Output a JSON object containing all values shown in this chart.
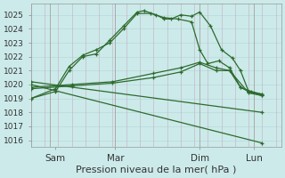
{
  "background_color": "#cceaea",
  "grid_color_h": "#b8d8d8",
  "grid_color_v": "#c8b8c8",
  "line_color": "#2d6b2d",
  "ylim": [
    1015.5,
    1025.8
  ],
  "xlim": [
    0,
    9.2
  ],
  "yticks": [
    1016,
    1017,
    1018,
    1019,
    1020,
    1021,
    1022,
    1023,
    1024,
    1025
  ],
  "xlabel": "Pression niveau de la mer( hPa )",
  "xtick_labels": [
    "Sam",
    "Mar",
    "Dim",
    "Lun"
  ],
  "xtick_positions": [
    0.9,
    3.1,
    6.2,
    8.2
  ],
  "vlines_x": [
    0.7,
    3.1,
    6.2,
    8.2
  ],
  "series": [
    {
      "x": [
        0.0,
        0.9,
        1.4,
        1.9,
        2.4,
        2.9,
        3.4,
        3.9,
        4.15,
        4.6,
        4.9,
        5.15,
        5.5,
        5.9,
        6.2,
        6.6,
        7.0,
        7.4,
        7.7,
        8.0,
        8.5
      ],
      "y": [
        1019.0,
        1019.5,
        1021.0,
        1022.0,
        1022.2,
        1023.2,
        1024.2,
        1025.2,
        1025.3,
        1025.0,
        1024.7,
        1024.7,
        1025.0,
        1024.9,
        1025.2,
        1024.2,
        1022.5,
        1021.9,
        1021.0,
        1019.5,
        1019.2
      ]
    },
    {
      "x": [
        0.0,
        0.9,
        1.4,
        1.9,
        2.4,
        2.9,
        3.4,
        3.9,
        4.4,
        4.9,
        5.4,
        5.9,
        6.2,
        6.5,
        6.9,
        7.3,
        7.7,
        8.1,
        8.5
      ],
      "y": [
        1019.0,
        1019.7,
        1021.3,
        1022.1,
        1022.5,
        1023.0,
        1024.0,
        1025.1,
        1025.1,
        1024.8,
        1024.7,
        1024.5,
        1022.5,
        1021.5,
        1021.7,
        1021.2,
        1019.8,
        1019.5,
        1019.3
      ]
    },
    {
      "x": [
        0.0,
        1.5,
        3.0,
        4.5,
        5.5,
        6.2,
        6.8,
        7.3,
        7.7,
        8.0,
        8.5
      ],
      "y": [
        1019.8,
        1020.0,
        1020.2,
        1020.8,
        1021.2,
        1021.6,
        1021.2,
        1021.0,
        1019.8,
        1019.5,
        1019.3
      ]
    },
    {
      "x": [
        0.0,
        1.5,
        3.0,
        4.5,
        5.5,
        6.2,
        6.8,
        7.3,
        8.0,
        8.5
      ],
      "y": [
        1019.7,
        1019.9,
        1020.1,
        1020.5,
        1020.9,
        1021.5,
        1021.0,
        1021.0,
        1019.4,
        1019.2
      ]
    },
    {
      "x": [
        0.0,
        8.5
      ],
      "y": [
        1020.2,
        1018.0
      ]
    },
    {
      "x": [
        0.0,
        8.5
      ],
      "y": [
        1020.0,
        1015.8
      ]
    }
  ]
}
